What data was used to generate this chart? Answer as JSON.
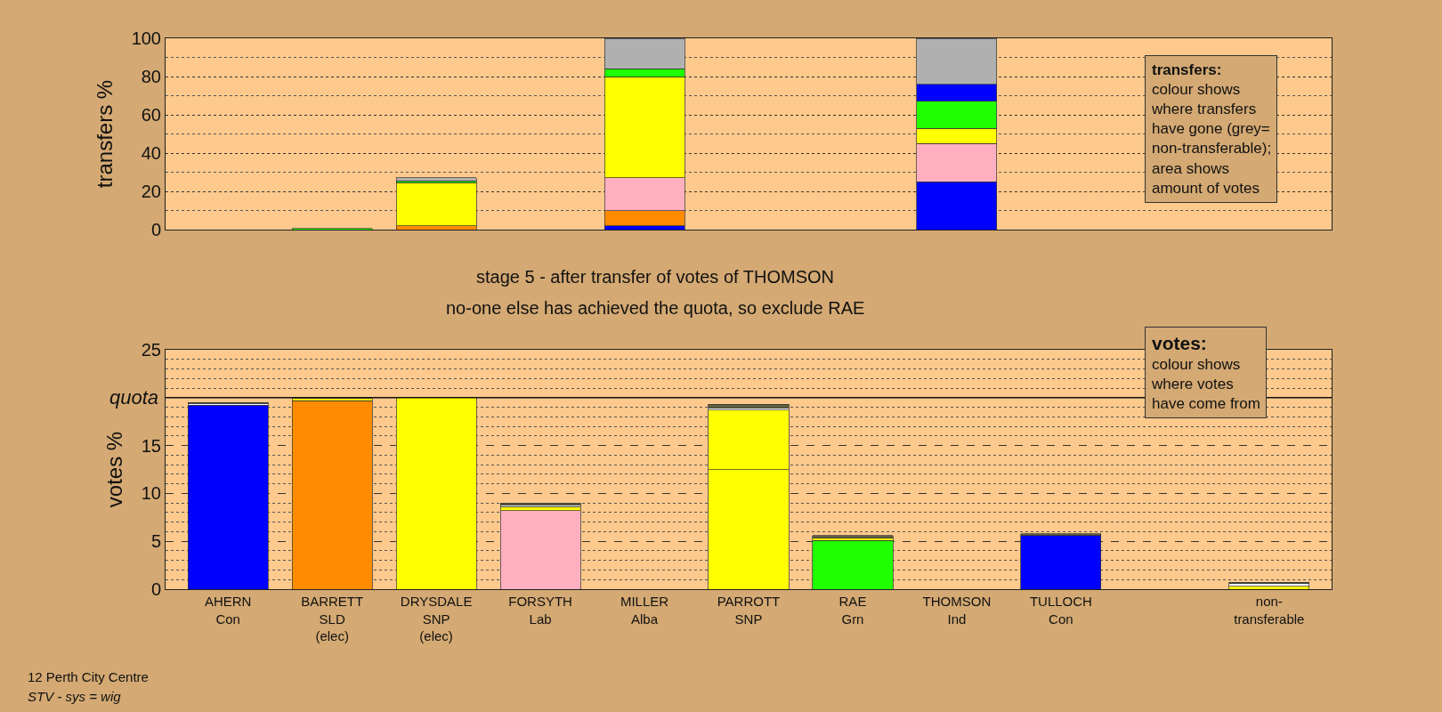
{
  "chart_data": [
    {
      "type": "bar",
      "stacked": true,
      "ylabel": "transfers %",
      "tick_labels": "y",
      "grid": "y",
      "categories": [
        null,
        null,
        null,
        null,
        null,
        null,
        null,
        null,
        null,
        null,
        null
      ],
      "ylim": [
        0,
        100
      ],
      "yticks": [
        0,
        {
          "value": 10,
          "label": null
        },
        20,
        {
          "value": 30,
          "label": null
        },
        40,
        {
          "value": 50,
          "label": null
        },
        60,
        {
          "value": 70,
          "label": null
        },
        80,
        {
          "value": 90,
          "label": null
        },
        100
      ],
      "series": [
        {
          "color": "#0000ff",
          "values": [
            0,
            0,
            0,
            0,
            2,
            0,
            0,
            25,
            0,
            null,
            0
          ]
        },
        {
          "color": "#ff8c00",
          "values": [
            0,
            0,
            2,
            0,
            8,
            0,
            0,
            0,
            0,
            null,
            0
          ]
        },
        {
          "color": "#ffb0c0",
          "values": [
            0,
            0,
            null,
            0,
            17,
            0,
            0,
            20,
            0,
            null,
            0
          ]
        },
        {
          "color": "#ffff00",
          "values": [
            0,
            0,
            22.5,
            0,
            53,
            0,
            0,
            8,
            0,
            null,
            0
          ]
        },
        {
          "color": "#20ff00",
          "values": [
            0,
            0.5,
            1,
            0,
            4,
            0,
            0,
            14,
            0,
            null,
            0
          ]
        },
        {
          "color": "#0000ff",
          "values": [
            0,
            0,
            0,
            0,
            0,
            0,
            0,
            9,
            0,
            null,
            0
          ]
        },
        {
          "color": "#b0b0b0",
          "values": [
            0,
            0,
            1.5,
            0,
            16,
            0,
            0,
            24,
            0,
            null,
            0
          ]
        }
      ],
      "annotations": [
        "transfers:\ncolour shows\nwhere transfers\nhave gone (grey=\nnon-transferable);\narea shows\namount of votes"
      ]
    },
    {
      "type": "bar",
      "stacked": true,
      "title": "stage 5 - after transfer of votes of THOMSON",
      "subtitle": "no-one else has achieved the quota, so exclude RAE",
      "ylabel": "votes %",
      "grid": "y",
      "categories": [
        "AHERN\nCon",
        "BARRETT\nSLD\n(elec)",
        "DRYSDALE\nSNP\n(elec)",
        "FORSYTH\nLab",
        "MILLER\nAlba",
        "PARROTT\nSNP",
        "RAE\nGrn",
        "THOMSON\nInd",
        "TULLOCH\nCon",
        null,
        "non-\ntransferable"
      ],
      "ylim": [
        0,
        25
      ],
      "yticks": [
        0,
        {
          "value": 1,
          "label": null
        },
        {
          "value": 2,
          "label": null
        },
        {
          "value": 3,
          "label": null
        },
        {
          "value": 4,
          "label": null
        },
        5,
        {
          "value": 6,
          "label": null
        },
        {
          "value": 7,
          "label": null
        },
        {
          "value": 8,
          "label": null
        },
        {
          "value": 9,
          "label": null
        },
        10,
        {
          "value": 11,
          "label": null
        },
        {
          "value": 12,
          "label": null
        },
        {
          "value": 13,
          "label": null
        },
        {
          "value": 14,
          "label": null
        },
        15,
        {
          "value": 16,
          "label": null
        },
        {
          "value": 17,
          "label": null
        },
        {
          "value": 18,
          "label": null
        },
        {
          "value": 19,
          "label": null
        },
        {
          "value": 21,
          "label": null
        },
        {
          "value": 22,
          "label": null
        },
        {
          "value": 23,
          "label": null
        },
        {
          "value": 24,
          "label": null
        },
        25
      ],
      "ref_lines": [
        {
          "axis": "y",
          "value": 20,
          "label": "quota"
        }
      ],
      "series": [
        {
          "colors": [
            "#0000ff",
            "#ff8c00",
            "#ffff00",
            "#ffb0c0",
            "#ffffff",
            "#ffff00",
            "#20ff00",
            "#ffffff",
            "#0000ff",
            "#ffffff",
            "#ffff00"
          ],
          "values": [
            19.2,
            19.7,
            20.0,
            8.2,
            0,
            12.5,
            5.1,
            0,
            5.6,
            null,
            0
          ]
        },
        {
          "color": "#ffff00",
          "values": [
            0,
            0.2,
            0,
            0.4,
            0,
            6.2,
            0.2,
            0,
            0,
            null,
            0.3
          ]
        },
        {
          "color": "#ffffff",
          "values": [
            0.2,
            0,
            0,
            0.2,
            0,
            0.2,
            null,
            0,
            null,
            null,
            0.3
          ]
        },
        {
          "color": "#606040",
          "values": [
            0.1,
            0,
            0,
            0.2,
            0,
            0.4,
            0.3,
            0,
            0.2,
            null,
            0.1
          ]
        }
      ],
      "annotations": [
        "votes:\ncolour shows\nwhere votes\nhave come from",
        "12 Perth City Centre",
        "STV - sys = wig"
      ]
    }
  ]
}
